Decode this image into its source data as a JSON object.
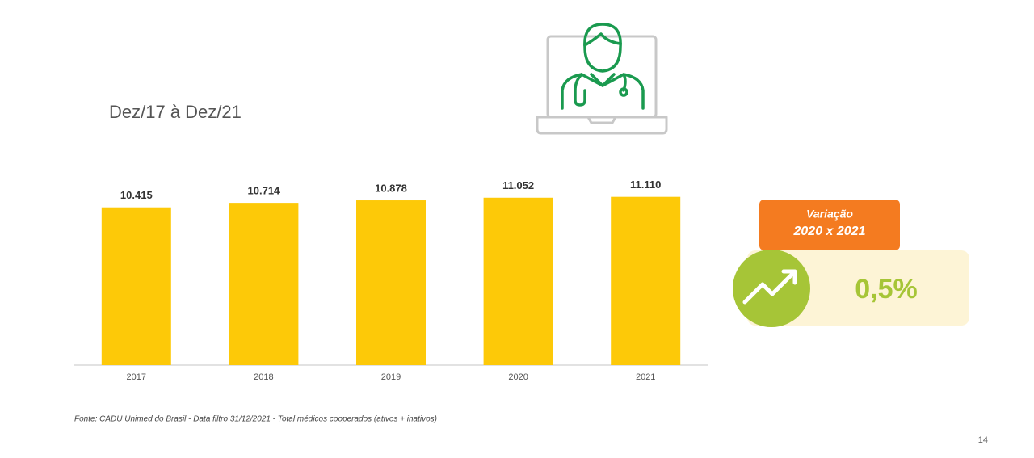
{
  "chart_data": {
    "type": "bar",
    "subtitle": "Dez/17 à Dez/21",
    "categories": [
      "2017",
      "2018",
      "2019",
      "2020",
      "2021"
    ],
    "values": [
      10415,
      10714,
      10878,
      11052,
      11110
    ],
    "value_labels": [
      "10.415",
      "10.714",
      "10.878",
      "11.052",
      "11.110"
    ],
    "color": "#fdc908",
    "ylim": [
      0,
      12000
    ]
  },
  "variation": {
    "title_line1": "Variação",
    "title_line2": "2020 x 2021",
    "value": "0,5%"
  },
  "footer": {
    "source": "Fonte: CADU Unimed do Brasil - Data filtro 31/12/2021  - Total médicos cooperados (ativos + inativos)",
    "page_number": "14"
  }
}
